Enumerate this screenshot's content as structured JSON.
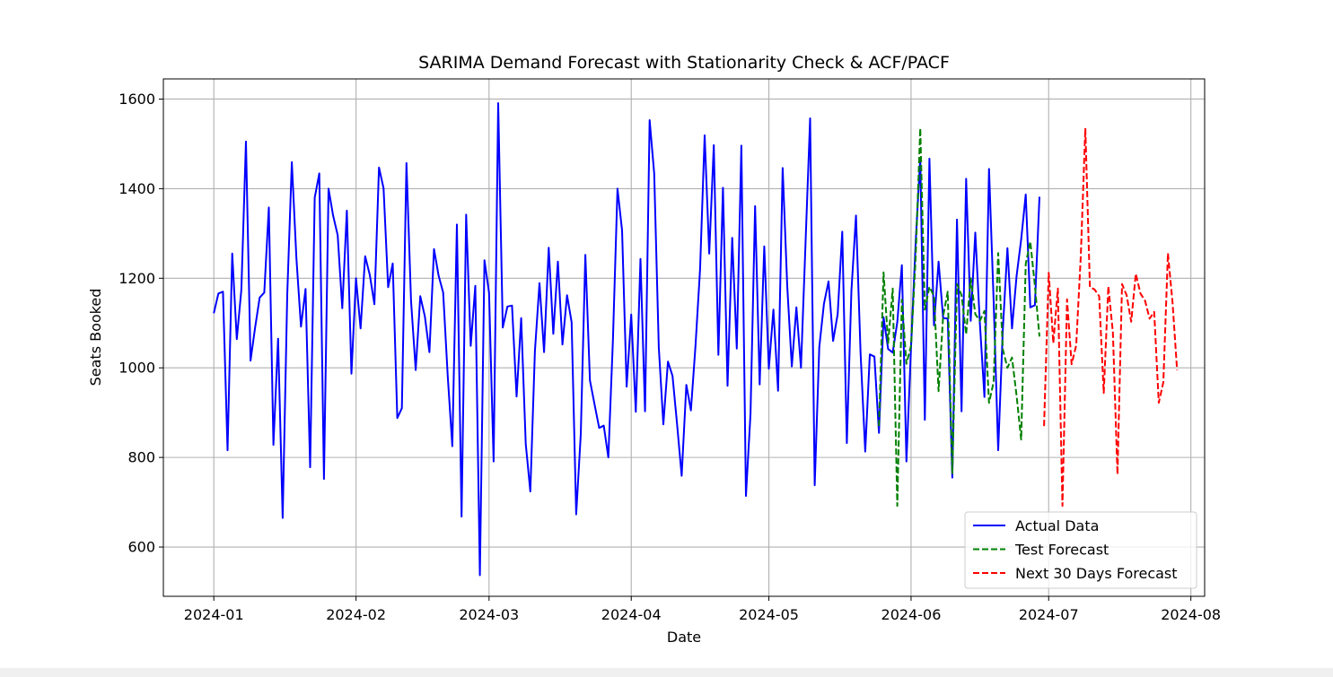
{
  "chart_data": {
    "type": "line",
    "title": "SARIMA Demand Forecast with Stationarity Check & ACF/PACF",
    "xlabel": "Date",
    "ylabel": "Seats Booked",
    "xlim": [
      "2023-12-21",
      "2024-08-04"
    ],
    "ylim": [
      490,
      1645
    ],
    "x_ticks": [
      "2024-01-01",
      "2024-02-01",
      "2024-03-01",
      "2024-04-01",
      "2024-05-01",
      "2024-06-01",
      "2024-07-01",
      "2024-08-01"
    ],
    "x_tick_labels": [
      "2024-01",
      "2024-02",
      "2024-03",
      "2024-04",
      "2024-05",
      "2024-06",
      "2024-07",
      "2024-08"
    ],
    "y_ticks": [
      600,
      800,
      1000,
      1200,
      1400,
      1600
    ],
    "y_tick_labels": [
      "600",
      "800",
      "1000",
      "1200",
      "1400",
      "1600"
    ],
    "grid": true,
    "legend_position": "lower-right",
    "series": [
      {
        "name": "Actual Data",
        "color": "#0000ff",
        "style": "solid",
        "x_start": "2024-01-01",
        "values": [
          1122,
          1166,
          1170,
          816,
          1255,
          1064,
          1175,
          1505,
          1016,
          1090,
          1157,
          1168,
          1358,
          828,
          1065,
          665,
          1163,
          1459,
          1245,
          1092,
          1176,
          778,
          1380,
          1434,
          752,
          1400,
          1340,
          1296,
          1133,
          1351,
          987,
          1200,
          1088,
          1249,
          1207,
          1142,
          1447,
          1401,
          1180,
          1233,
          888,
          910,
          1457,
          1150,
          995,
          1160,
          1115,
          1035,
          1265,
          1206,
          1168,
          981,
          825,
          1320,
          668,
          1342,
          1049,
          1183,
          537,
          1240,
          1168,
          791,
          1591,
          1090,
          1137,
          1139,
          936,
          1111,
          830,
          724,
          1037,
          1189,
          1035,
          1268,
          1076,
          1237,
          1052,
          1162,
          1102,
          673,
          852,
          1252,
          972,
          918,
          866,
          871,
          800,
          1061,
          1400,
          1307,
          958,
          1119,
          902,
          1243,
          903,
          1553,
          1434,
          1046,
          874,
          1014,
          982,
          874,
          759,
          962,
          905,
          1049,
          1220,
          1519,
          1255,
          1497,
          1029,
          1402,
          960,
          1290,
          1043,
          1496,
          714,
          898,
          1361,
          963,
          1271,
          998,
          1130,
          949,
          1446,
          1183,
          1003,
          1135,
          1000,
          1279,
          1557,
          738,
          1046,
          1143,
          1193,
          1060,
          1120,
          1304,
          832,
          1172,
          1340,
          1033,
          813,
          1030,
          1025,
          855,
          1113,
          1042,
          1034,
          1102,
          1229,
          791,
          1050,
          1281,
          1469,
          884,
          1467,
          1095,
          1237,
          1111,
          1110,
          755,
          1331,
          903,
          1422,
          1105,
          1302,
          1100,
          935,
          1444,
          1152,
          816,
          1087,
          1267,
          1088,
          1205,
          1286,
          1387,
          1135,
          1140,
          1382
        ]
      },
      {
        "name": "Test Forecast",
        "color": "#008000",
        "style": "dashed",
        "x_start": "2024-05-25",
        "values": [
          870,
          1213,
          1055,
          1177,
          692,
          1152,
          1009,
          1050,
          1248,
          1535,
          1130,
          1181,
          1160,
          948,
          1116,
          1170,
          763,
          1187,
          1162,
          1075,
          1200,
          1120,
          1105,
          1127,
          922,
          968,
          1256,
          1041,
          1000,
          1023,
          938,
          840,
          1232,
          1282,
          1183,
          1070
        ]
      },
      {
        "name": "Next 30 Days Forecast",
        "color": "#ff0000",
        "style": "dashed",
        "x_start": "2024-06-30",
        "values": [
          870,
          1212,
          1055,
          1177,
          692,
          1153,
          1008,
          1050,
          1248,
          1535,
          1180,
          1175,
          1160,
          944,
          1182,
          1079,
          762,
          1187,
          1162,
          1103,
          1210,
          1166,
          1150,
          1110,
          1125,
          922,
          968,
          1256,
          1147,
          995
        ]
      }
    ]
  }
}
